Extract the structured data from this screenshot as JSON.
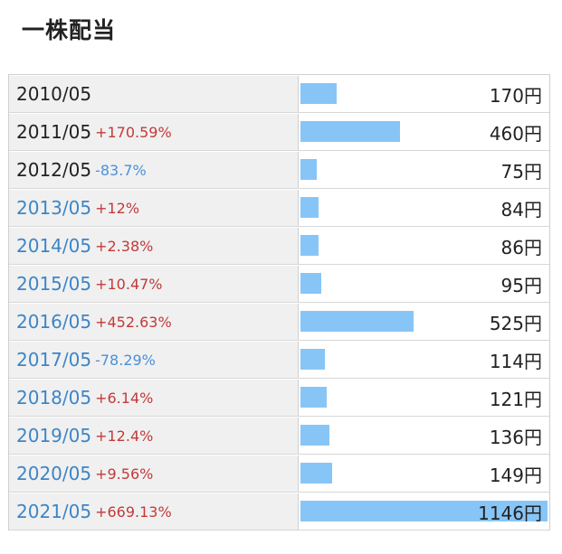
{
  "title": "一株配当",
  "chart_data": {
    "type": "bar",
    "orientation": "horizontal",
    "unit": "円",
    "colors": {
      "bar": "#88c5f7",
      "increase": "#c23a3a",
      "decrease": "#4a90d9",
      "link": "#3d85c6"
    },
    "rows": [
      {
        "year": "2010/05",
        "change": "",
        "direction": "",
        "value": 170,
        "label": "170円",
        "link": false
      },
      {
        "year": "2011/05",
        "change": "+170.59%",
        "direction": "up",
        "value": 460,
        "label": "460円",
        "link": false
      },
      {
        "year": "2012/05",
        "change": "-83.7%",
        "direction": "down",
        "value": 75,
        "label": "75円",
        "link": false
      },
      {
        "year": "2013/05",
        "change": "+12%",
        "direction": "up",
        "value": 84,
        "label": "84円",
        "link": true
      },
      {
        "year": "2014/05",
        "change": "+2.38%",
        "direction": "up",
        "value": 86,
        "label": "86円",
        "link": true
      },
      {
        "year": "2015/05",
        "change": "+10.47%",
        "direction": "up",
        "value": 95,
        "label": "95円",
        "link": true
      },
      {
        "year": "2016/05",
        "change": "+452.63%",
        "direction": "up",
        "value": 525,
        "label": "525円",
        "link": true
      },
      {
        "year": "2017/05",
        "change": "-78.29%",
        "direction": "down",
        "value": 114,
        "label": "114円",
        "link": true
      },
      {
        "year": "2018/05",
        "change": "+6.14%",
        "direction": "up",
        "value": 121,
        "label": "121円",
        "link": true
      },
      {
        "year": "2019/05",
        "change": "+12.4%",
        "direction": "up",
        "value": 136,
        "label": "136円",
        "link": true
      },
      {
        "year": "2020/05",
        "change": "+9.56%",
        "direction": "up",
        "value": 149,
        "label": "149円",
        "link": true
      },
      {
        "year": "2021/05",
        "change": "+669.13%",
        "direction": "up",
        "value": 1146,
        "label": "1146円",
        "link": true
      }
    ]
  }
}
